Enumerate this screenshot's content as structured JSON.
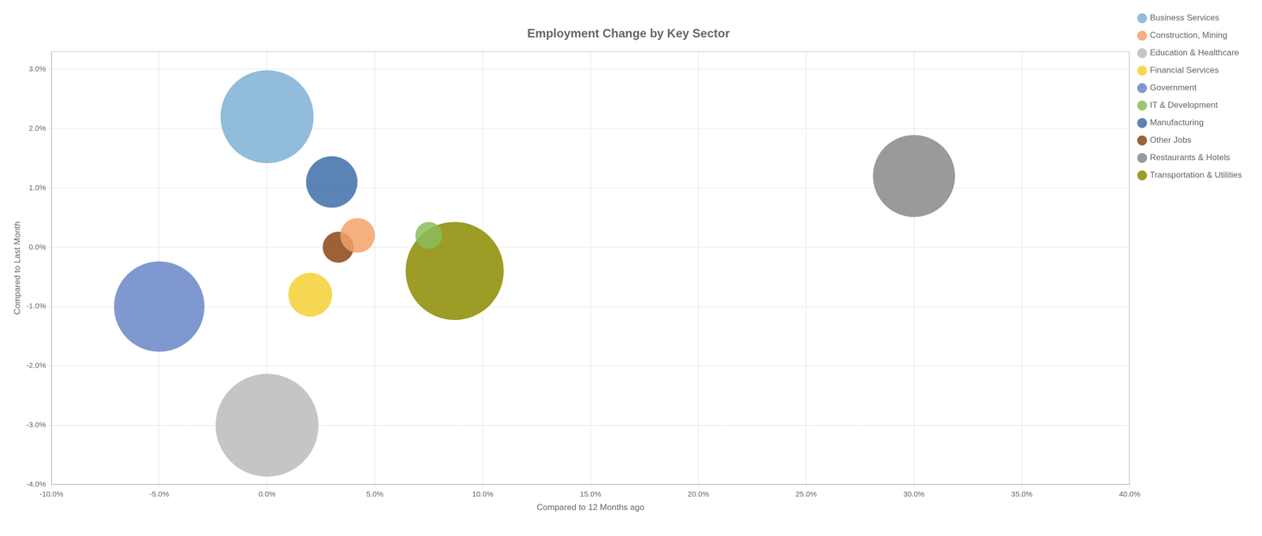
{
  "chart_data": {
    "type": "bubble",
    "title": "Employment Change by Key Sector",
    "x_label": "Compared to 12 Months ago",
    "y_label": "Compared to Last Month",
    "xlim": [
      -0.1,
      0.4
    ],
    "ylim": [
      -0.04,
      0.033
    ],
    "xticks": [
      {
        "value": -0.1,
        "label": "-10.0%"
      },
      {
        "value": -0.05,
        "label": "-5.0%"
      },
      {
        "value": 0.0,
        "label": "0.0%"
      },
      {
        "value": 0.05,
        "label": "5.0%"
      },
      {
        "value": 0.1,
        "label": "10.0%"
      },
      {
        "value": 0.15,
        "label": "15.0%"
      },
      {
        "value": 0.2,
        "label": "20.0%"
      },
      {
        "value": 0.25,
        "label": "25.0%"
      },
      {
        "value": 0.3,
        "label": "30.0%"
      },
      {
        "value": 0.35,
        "label": "35.0%"
      },
      {
        "value": 0.4,
        "label": "40.0%"
      }
    ],
    "yticks": [
      {
        "value": -0.04,
        "label": "-4.0%"
      },
      {
        "value": -0.03,
        "label": "-3.0%"
      },
      {
        "value": -0.02,
        "label": "-2.0%"
      },
      {
        "value": -0.01,
        "label": "-1.0%"
      },
      {
        "value": 0.0,
        "label": "0.0%"
      },
      {
        "value": 0.01,
        "label": "1.0%"
      },
      {
        "value": 0.02,
        "label": "2.0%"
      },
      {
        "value": 0.03,
        "label": "3.0%"
      }
    ],
    "grid": true,
    "legend": "right",
    "series": [
      {
        "name": "Business Services",
        "color": "#7EB0D5",
        "x": [
          0.0
        ],
        "values": [
          0.022
        ],
        "sizes": [
          18000
        ]
      },
      {
        "name": "Construction, Mining",
        "color": "#F5A269",
        "x": [
          0.042
        ],
        "values": [
          0.002
        ],
        "sizes": [
          2500
        ]
      },
      {
        "name": "Education & Healthcare",
        "color": "#BBBBBB",
        "x": [
          0.0
        ],
        "values": [
          -0.03
        ],
        "sizes": [
          22000
        ]
      },
      {
        "name": "Financial Services",
        "color": "#F5D033",
        "x": [
          0.02
        ],
        "values": [
          -0.008
        ],
        "sizes": [
          4000
        ]
      },
      {
        "name": "Government",
        "color": "#6A86C8",
        "x": [
          -0.05
        ],
        "values": [
          -0.01
        ],
        "sizes": [
          17000
        ]
      },
      {
        "name": "IT & Development",
        "color": "#8BBD5A",
        "x": [
          0.075
        ],
        "values": [
          0.002
        ],
        "sizes": [
          1500
        ]
      },
      {
        "name": "Manufacturing",
        "color": "#3D6FA8",
        "x": [
          0.03
        ],
        "values": [
          0.011
        ],
        "sizes": [
          5500
        ]
      },
      {
        "name": "Other Jobs",
        "color": "#8B4513",
        "x": [
          0.033
        ],
        "values": [
          0.0
        ],
        "sizes": [
          2000
        ]
      },
      {
        "name": "Restaurants & Hotels",
        "color": "#888888",
        "x": [
          0.3
        ],
        "values": [
          0.012
        ],
        "sizes": [
          14000
        ]
      },
      {
        "name": "Transportation & Utilities",
        "color": "#8B8B00",
        "x": [
          0.087
        ],
        "values": [
          -0.004
        ],
        "sizes": [
          20000
        ]
      }
    ]
  }
}
